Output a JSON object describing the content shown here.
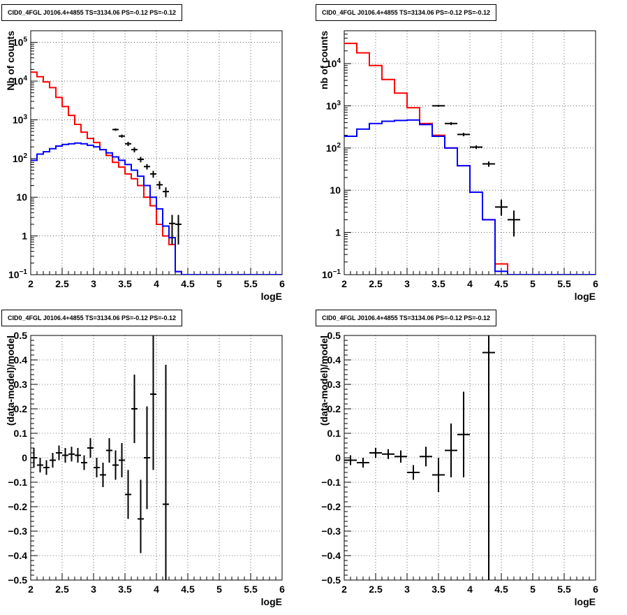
{
  "chart_data": [
    {
      "type": "line",
      "title": "CID0_4FGL J0106.4+4855 TS=3134.06 PS=-0.12 PS=-0.12",
      "xlabel": "logE",
      "ylabel": "Nb of counts",
      "log_y": true,
      "xlim": [
        2,
        6
      ],
      "ylim": [
        0.1,
        200000
      ],
      "x_ticks": [
        "2",
        "2.5",
        "3",
        "3.5",
        "4",
        "4.5",
        "5",
        "5.5",
        "6"
      ],
      "y_ticks": [
        {
          "v": 0.1,
          "label": "10",
          "sup": "−1"
        },
        {
          "v": 1,
          "label": "1",
          "sup": ""
        },
        {
          "v": 10,
          "label": "10",
          "sup": ""
        },
        {
          "v": 100,
          "label": "10",
          "sup": "2"
        },
        {
          "v": 1000,
          "label": "10",
          "sup": "3"
        },
        {
          "v": 10000,
          "label": "10",
          "sup": "4"
        },
        {
          "v": 100000,
          "label": "10",
          "sup": "5"
        }
      ],
      "grid": true,
      "bin_width": 0.1,
      "bin_starts": [
        2.0,
        2.1,
        2.2,
        2.3,
        2.4,
        2.5,
        2.6,
        2.7,
        2.8,
        2.9,
        3.0,
        3.1,
        3.2,
        3.3,
        3.4,
        3.5,
        3.6,
        3.7,
        3.8,
        3.9,
        4.0,
        4.1,
        4.2,
        4.3,
        4.4,
        4.5,
        4.6,
        4.7,
        4.8,
        4.9,
        5.0,
        5.1,
        5.2,
        5.3,
        5.4,
        5.5,
        5.6,
        5.7,
        5.8,
        5.9
      ],
      "series": [
        {
          "color": "#ff0000",
          "values": [
            17000,
            13000,
            9500,
            6800,
            3800,
            2200,
            1300,
            760,
            480,
            330,
            260,
            170,
            120,
            80,
            60,
            40,
            30,
            20,
            10,
            6,
            2,
            1,
            0.6,
            0.12,
            0.1,
            0.1,
            0.1,
            0.1,
            0.1,
            0.1,
            0.1,
            0.1,
            0.1,
            0.1,
            0.1,
            0.1,
            0.1,
            0.1,
            0.1,
            0.1
          ]
        },
        {
          "color": "#0000ff",
          "values": [
            90,
            130,
            150,
            180,
            210,
            230,
            240,
            250,
            240,
            220,
            200,
            170,
            140,
            110,
            90,
            70,
            50,
            35,
            20,
            10,
            5,
            1.8,
            0.9,
            0.12,
            0.1,
            0.1,
            0.1,
            0.1,
            0.1,
            0.1,
            0.1,
            0.1,
            0.1,
            0.1,
            0.1,
            0.1,
            0.1,
            0.1,
            0.1,
            0.1
          ]
        }
      ],
      "data_points": [
        {
          "x": 3.35,
          "y": 560,
          "ylo": 520,
          "yhi": 600
        },
        {
          "x": 3.45,
          "y": 380,
          "ylo": 345,
          "yhi": 415
        },
        {
          "x": 3.55,
          "y": 240,
          "ylo": 210,
          "yhi": 270
        },
        {
          "x": 3.65,
          "y": 170,
          "ylo": 145,
          "yhi": 195
        },
        {
          "x": 3.75,
          "y": 95,
          "ylo": 80,
          "yhi": 110
        },
        {
          "x": 3.85,
          "y": 62,
          "ylo": 52,
          "yhi": 72
        },
        {
          "x": 3.95,
          "y": 40,
          "ylo": 32,
          "yhi": 48
        },
        {
          "x": 4.05,
          "y": 21,
          "ylo": 16,
          "yhi": 26
        },
        {
          "x": 4.15,
          "y": 14,
          "ylo": 10,
          "yhi": 18
        },
        {
          "x": 4.25,
          "y": 2.1,
          "ylo": 0.6,
          "yhi": 3.5
        },
        {
          "x": 4.35,
          "y": 2.0,
          "ylo": 0.6,
          "yhi": 3.5
        }
      ]
    },
    {
      "type": "line",
      "title": "CID0_4FGL J0106.4+4855 TS=3134.06 PS=-0.12 PS=-0.12",
      "xlabel": "logE",
      "ylabel": "nb of counts",
      "log_y": true,
      "xlim": [
        2,
        6
      ],
      "ylim": [
        0.1,
        60000
      ],
      "x_ticks": [
        "2",
        "2.5",
        "3",
        "3.5",
        "4",
        "4.5",
        "5",
        "5.5",
        "6"
      ],
      "y_ticks": [
        {
          "v": 0.1,
          "label": "10",
          "sup": "−1"
        },
        {
          "v": 1,
          "label": "1",
          "sup": ""
        },
        {
          "v": 10,
          "label": "10",
          "sup": ""
        },
        {
          "v": 100,
          "label": "10",
          "sup": "2"
        },
        {
          "v": 1000,
          "label": "10",
          "sup": "3"
        },
        {
          "v": 10000,
          "label": "10",
          "sup": "4"
        }
      ],
      "grid": true,
      "bin_width": 0.2,
      "bin_starts": [
        2.0,
        2.2,
        2.4,
        2.6,
        2.8,
        3.0,
        3.2,
        3.4,
        3.6,
        3.8,
        4.0,
        4.2,
        4.4,
        4.6,
        4.8,
        5.0,
        5.2,
        5.4,
        5.6,
        5.8
      ],
      "series": [
        {
          "color": "#ff0000",
          "values": [
            30000,
            18000,
            9000,
            4200,
            2000,
            900,
            380,
            200,
            100,
            38,
            9,
            2,
            0.18,
            0.1,
            0.1,
            0.1,
            0.1,
            0.1,
            0.1,
            0.1
          ]
        },
        {
          "color": "#0000ff",
          "values": [
            190,
            280,
            380,
            430,
            450,
            460,
            360,
            190,
            100,
            38,
            9,
            2,
            0.12,
            0.1,
            0.1,
            0.1,
            0.1,
            0.1,
            0.1,
            0.1
          ]
        }
      ],
      "data_points": [
        {
          "x": 3.5,
          "y": 1000,
          "ylo": 950,
          "yhi": 1050
        },
        {
          "x": 3.7,
          "y": 380,
          "ylo": 350,
          "yhi": 410
        },
        {
          "x": 3.9,
          "y": 210,
          "ylo": 190,
          "yhi": 230
        },
        {
          "x": 4.1,
          "y": 105,
          "ylo": 95,
          "yhi": 115
        },
        {
          "x": 4.3,
          "y": 42,
          "ylo": 36,
          "yhi": 48
        },
        {
          "x": 4.5,
          "y": 4,
          "ylo": 2.5,
          "yhi": 6
        },
        {
          "x": 4.7,
          "y": 2.0,
          "ylo": 0.8,
          "yhi": 3.3
        }
      ]
    },
    {
      "type": "scatter",
      "title": "CID0_4FGL J0106.4+4855 TS=3134.06 PS=-0.12 PS=-0.12",
      "xlabel": "logE",
      "ylabel": "(data-model)/model",
      "log_y": false,
      "xlim": [
        2,
        6
      ],
      "ylim": [
        -0.5,
        0.5
      ],
      "x_ticks": [
        "2",
        "2.5",
        "3",
        "3.5",
        "4",
        "4.5",
        "5",
        "5.5",
        "6"
      ],
      "y_ticks": [
        {
          "v": -0.5,
          "label": "−0.5"
        },
        {
          "v": -0.4,
          "label": "−0.4"
        },
        {
          "v": -0.3,
          "label": "−0.3"
        },
        {
          "v": -0.2,
          "label": "−0.2"
        },
        {
          "v": -0.1,
          "label": "−0.1"
        },
        {
          "v": 0,
          "label": "0"
        },
        {
          "v": 0.1,
          "label": "0.1"
        },
        {
          "v": 0.2,
          "label": "0.2"
        },
        {
          "v": 0.3,
          "label": "0.3"
        },
        {
          "v": 0.4,
          "label": "0.4"
        },
        {
          "v": 0.5,
          "label": "0.5"
        }
      ],
      "grid": true,
      "xerr": 0.05,
      "data_points": [
        {
          "x": 2.05,
          "y": 0.0,
          "ylo": -0.04,
          "yhi": 0.04
        },
        {
          "x": 2.15,
          "y": -0.03,
          "ylo": -0.06,
          "yhi": 0.0
        },
        {
          "x": 2.25,
          "y": -0.04,
          "ylo": -0.07,
          "yhi": -0.01
        },
        {
          "x": 2.35,
          "y": -0.01,
          "ylo": -0.04,
          "yhi": 0.02
        },
        {
          "x": 2.45,
          "y": 0.02,
          "ylo": -0.01,
          "yhi": 0.05
        },
        {
          "x": 2.55,
          "y": 0.01,
          "ylo": -0.02,
          "yhi": 0.04
        },
        {
          "x": 2.65,
          "y": 0.015,
          "ylo": -0.015,
          "yhi": 0.045
        },
        {
          "x": 2.75,
          "y": 0.01,
          "ylo": -0.02,
          "yhi": 0.04
        },
        {
          "x": 2.85,
          "y": -0.02,
          "ylo": -0.05,
          "yhi": 0.01
        },
        {
          "x": 2.95,
          "y": 0.04,
          "ylo": 0.0,
          "yhi": 0.08
        },
        {
          "x": 3.05,
          "y": -0.04,
          "ylo": -0.08,
          "yhi": 0.0
        },
        {
          "x": 3.15,
          "y": -0.07,
          "ylo": -0.12,
          "yhi": -0.02
        },
        {
          "x": 3.25,
          "y": 0.03,
          "ylo": -0.02,
          "yhi": 0.08
        },
        {
          "x": 3.35,
          "y": -0.03,
          "ylo": -0.09,
          "yhi": 0.03
        },
        {
          "x": 3.45,
          "y": -0.01,
          "ylo": -0.08,
          "yhi": 0.06
        },
        {
          "x": 3.55,
          "y": -0.15,
          "ylo": -0.25,
          "yhi": -0.05
        },
        {
          "x": 3.65,
          "y": 0.2,
          "ylo": 0.06,
          "yhi": 0.34
        },
        {
          "x": 3.75,
          "y": -0.25,
          "ylo": -0.39,
          "yhi": -0.09
        },
        {
          "x": 3.85,
          "y": 0.0,
          "ylo": -0.21,
          "yhi": 0.21
        },
        {
          "x": 3.95,
          "y": 0.26,
          "ylo": -0.05,
          "yhi": 0.5
        },
        {
          "x": 4.15,
          "y": -0.19,
          "ylo": -0.5,
          "yhi": 0.38
        }
      ]
    },
    {
      "type": "scatter",
      "title": "CID0_4FGL J0106.4+4855 TS=3134.06 PS=-0.12 PS=-0.12",
      "xlabel": "logE",
      "ylabel": "(data-model)/model",
      "log_y": false,
      "xlim": [
        2,
        6
      ],
      "ylim": [
        -0.5,
        0.5
      ],
      "x_ticks": [
        "2",
        "2.5",
        "3",
        "3.5",
        "4",
        "4.5",
        "5",
        "5.5",
        "6"
      ],
      "y_ticks": [
        {
          "v": -0.5,
          "label": "−0.5"
        },
        {
          "v": -0.4,
          "label": "−0.4"
        },
        {
          "v": -0.3,
          "label": "−0.3"
        },
        {
          "v": -0.2,
          "label": "−0.2"
        },
        {
          "v": -0.1,
          "label": "−0.1"
        },
        {
          "v": 0,
          "label": "0"
        },
        {
          "v": 0.1,
          "label": "0.1"
        },
        {
          "v": 0.2,
          "label": "0.2"
        },
        {
          "v": 0.3,
          "label": "0.3"
        },
        {
          "v": 0.4,
          "label": "0.4"
        },
        {
          "v": 0.5,
          "label": "0.5"
        }
      ],
      "grid": true,
      "xerr": 0.1,
      "data_points": [
        {
          "x": 2.1,
          "y": -0.01,
          "ylo": -0.03,
          "yhi": 0.01
        },
        {
          "x": 2.3,
          "y": -0.02,
          "ylo": -0.04,
          "yhi": 0.0
        },
        {
          "x": 2.5,
          "y": 0.02,
          "ylo": 0.0,
          "yhi": 0.04
        },
        {
          "x": 2.7,
          "y": 0.015,
          "ylo": -0.005,
          "yhi": 0.035
        },
        {
          "x": 2.9,
          "y": 0.005,
          "ylo": -0.02,
          "yhi": 0.03
        },
        {
          "x": 3.1,
          "y": -0.06,
          "ylo": -0.09,
          "yhi": -0.03
        },
        {
          "x": 3.3,
          "y": 0.005,
          "ylo": -0.035,
          "yhi": 0.045
        },
        {
          "x": 3.5,
          "y": -0.07,
          "ylo": -0.14,
          "yhi": 0.0
        },
        {
          "x": 3.7,
          "y": 0.03,
          "ylo": -0.08,
          "yhi": 0.14
        },
        {
          "x": 3.9,
          "y": 0.095,
          "ylo": -0.08,
          "yhi": 0.27
        },
        {
          "x": 4.3,
          "y": 0.43,
          "ylo": -0.5,
          "yhi": 0.5
        }
      ]
    }
  ]
}
